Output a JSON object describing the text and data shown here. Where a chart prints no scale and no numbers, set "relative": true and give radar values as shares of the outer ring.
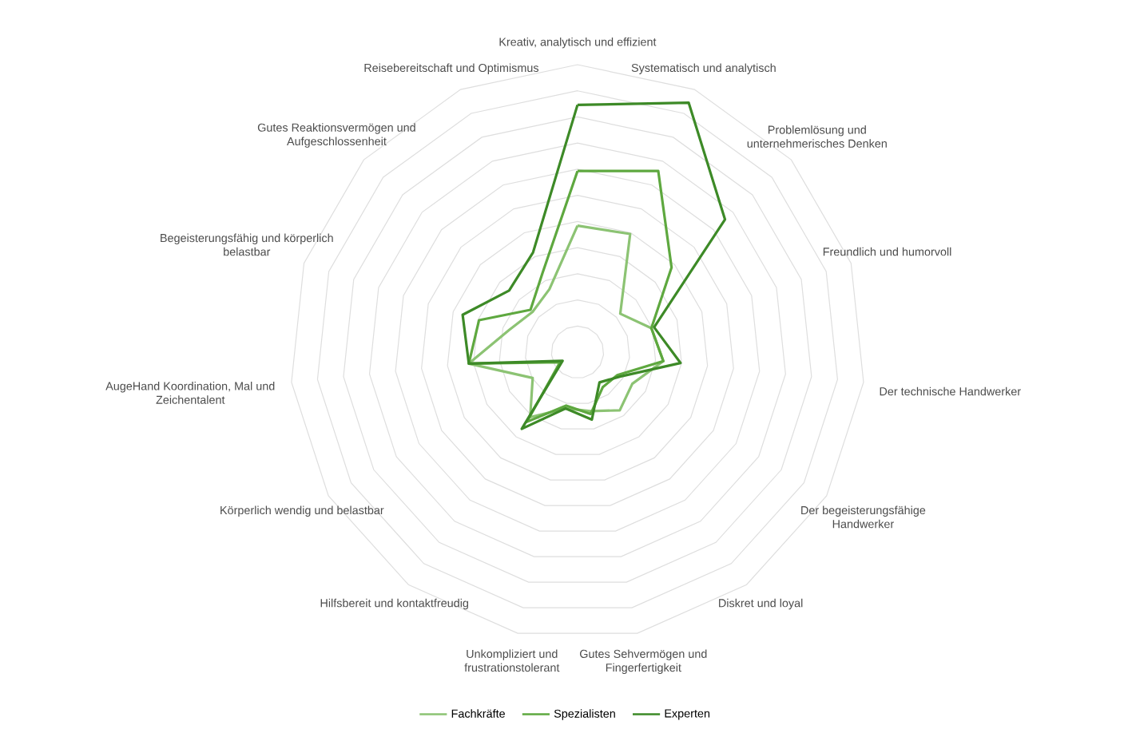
{
  "chart_data": {
    "type": "radar",
    "relative": true,
    "grid": true,
    "legend": "bottom",
    "marker": "none",
    "categories": [
      "Kreativ, analytisch und effizient",
      "Systematisch und analytisch",
      "Problemlösung und unternehmerisches Denken",
      "Freundlich und humorvoll",
      "Der technische Handwerker",
      "Der begeisterungsfähige Handwerker",
      "Diskret und loyal",
      "Gutes Sehvermögen und Fingerfertigkeit",
      "Unkompliziert und frustrationstolerant",
      "Hilfsbereit und kontaktfreudig",
      "Körperlich wendig und belastbar",
      "AugeHand Koordination, Mal und Zeichentalent",
      "Begeisterungsfähig und körperlich belastbar",
      "Gutes Reaktionsvermögen und Aufgeschlossenheit",
      "Reisebereitschaft und Optimismus"
    ],
    "series": [
      {
        "name": "Fachkräfte",
        "color": "#8cc373",
        "values": [
          0.44,
          0.45,
          0.2,
          0.27,
          0.3,
          0.22,
          0.25,
          0.21,
          0.2,
          0.28,
          0.18,
          0.38,
          0.25,
          0.21,
          0.24
        ]
      },
      {
        "name": "Spezialisten",
        "color": "#5ea83f",
        "values": [
          0.63,
          0.69,
          0.44,
          0.27,
          0.3,
          0.16,
          0.15,
          0.22,
          0.19,
          0.3,
          0.07,
          0.38,
          0.36,
          0.22,
          0.3
        ]
      },
      {
        "name": "Experten",
        "color": "#3d8a27",
        "values": [
          0.86,
          0.95,
          0.69,
          0.28,
          0.36,
          0.17,
          0.13,
          0.24,
          0.2,
          0.33,
          0.06,
          0.38,
          0.42,
          0.32,
          0.38
        ]
      }
    ]
  }
}
